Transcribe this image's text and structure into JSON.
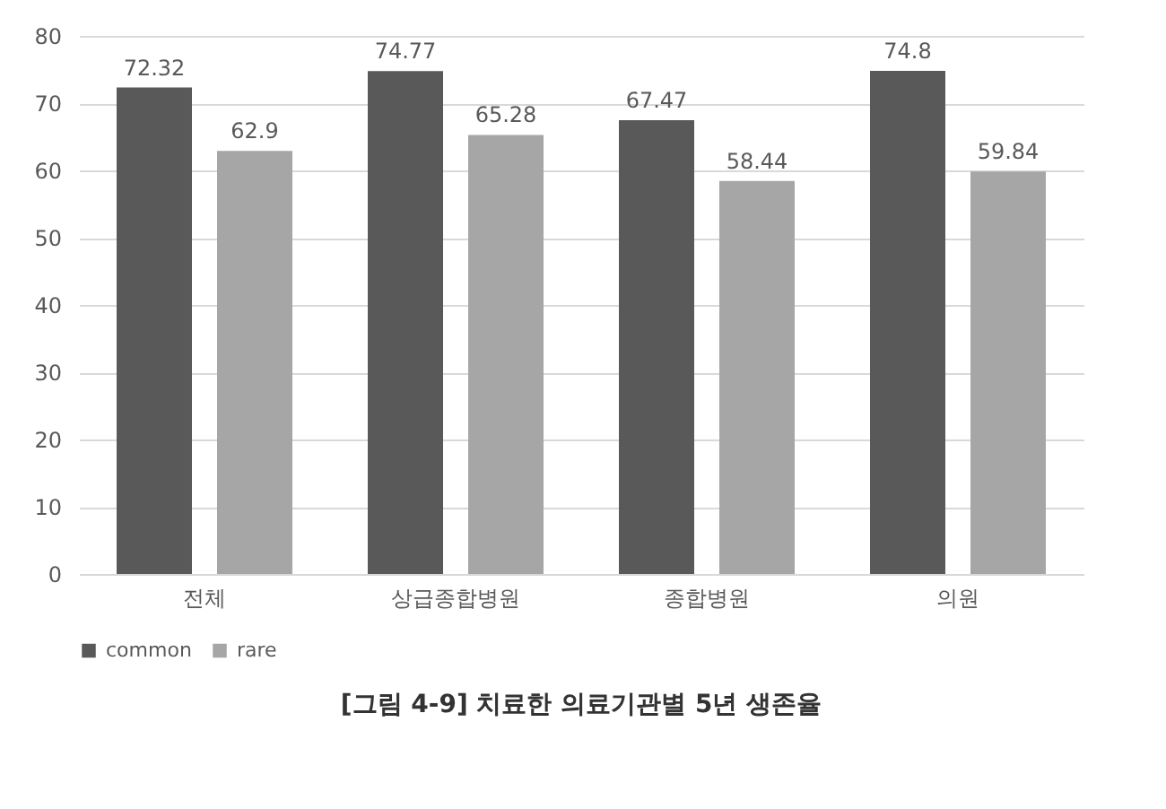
{
  "chart_data": {
    "type": "bar",
    "title": "[그림 4-9] 치료한 의료기관별 5년 생존율",
    "categories": [
      "전체",
      "상급종합병원",
      "종합병원",
      "의원"
    ],
    "series": [
      {
        "name": "common",
        "color": "#595959",
        "values": [
          72.32,
          74.77,
          67.47,
          74.8
        ]
      },
      {
        "name": "rare",
        "color": "#a6a6a6",
        "values": [
          62.9,
          65.28,
          58.44,
          59.84
        ]
      }
    ],
    "ylim": [
      0,
      80
    ],
    "yticks": [
      0,
      10,
      20,
      30,
      40,
      50,
      60,
      70,
      80
    ],
    "grid": "y",
    "legend": "bottom",
    "data_labels": true
  }
}
